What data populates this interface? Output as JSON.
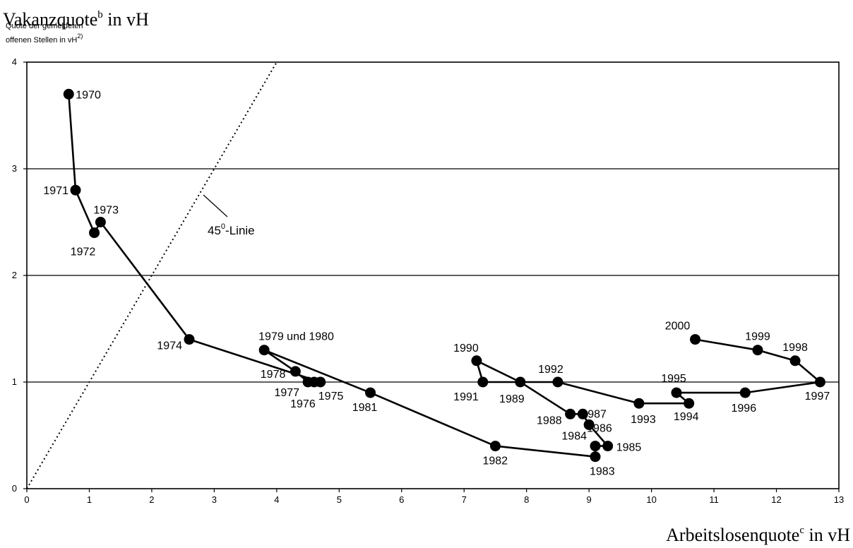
{
  "chart_data": {
    "type": "scatter",
    "title": "",
    "ylabel_main": "Vakanzquote",
    "ylabel_main_sup": "b",
    "ylabel_main_suffix": " in vH",
    "ylabel_sub_line1": "Quote der gemeldeten",
    "ylabel_sub_line2": "offenen Stellen in vH",
    "ylabel_sub_sup": "2)",
    "xlabel_main": "Arbeitslosenquote",
    "xlabel_main_sup": "c",
    "xlabel_main_suffix": " in vH",
    "xlim": [
      0,
      13
    ],
    "ylim": [
      0,
      4
    ],
    "xticks": [
      "0",
      "1",
      "2",
      "3",
      "4",
      "5",
      "6",
      "7",
      "8",
      "9",
      "10",
      "11",
      "12",
      "13"
    ],
    "yticks": [
      "0",
      "1",
      "2",
      "3",
      "4"
    ],
    "grid": "horizontal",
    "reference_line": {
      "label_prefix": "45",
      "label_sup": "0",
      "label_suffix": "-Linie",
      "from": [
        0,
        0
      ],
      "to": [
        4,
        4
      ]
    },
    "series": [
      {
        "points": [
          {
            "x": 0.67,
            "y": 3.7,
            "label": "1970"
          },
          {
            "x": 0.78,
            "y": 2.8,
            "label": "1971"
          },
          {
            "x": 1.08,
            "y": 2.4,
            "label": "1972"
          },
          {
            "x": 1.18,
            "y": 2.5,
            "label": "1973"
          },
          {
            "x": 2.6,
            "y": 1.4,
            "label": "1974"
          },
          {
            "x": 4.7,
            "y": 1.0,
            "label": "1975"
          },
          {
            "x": 4.6,
            "y": 1.0,
            "label": "1976"
          },
          {
            "x": 4.5,
            "y": 1.0,
            "label": "1977"
          },
          {
            "x": 4.3,
            "y": 1.1,
            "label": "1978"
          },
          {
            "x": 3.8,
            "y": 1.3,
            "label": "1979 und 1980"
          },
          {
            "x": 5.5,
            "y": 0.9,
            "label": "1981"
          },
          {
            "x": 7.5,
            "y": 0.4,
            "label": "1982"
          },
          {
            "x": 9.1,
            "y": 0.3,
            "label": "1983"
          },
          {
            "x": 9.1,
            "y": 0.4,
            "label": "1984"
          },
          {
            "x": 9.3,
            "y": 0.4,
            "label": "1985"
          },
          {
            "x": 9.0,
            "y": 0.6,
            "label": "1986"
          },
          {
            "x": 8.9,
            "y": 0.7,
            "label": "1987"
          },
          {
            "x": 8.7,
            "y": 0.7,
            "label": "1988"
          },
          {
            "x": 7.9,
            "y": 1.0,
            "label": "1989"
          },
          {
            "x": 7.2,
            "y": 1.2,
            "label": "1990"
          },
          {
            "x": 7.3,
            "y": 1.0,
            "label": "1991"
          },
          {
            "x": 8.5,
            "y": 1.0,
            "label": "1992"
          },
          {
            "x": 9.8,
            "y": 0.8,
            "label": "1993"
          },
          {
            "x": 10.6,
            "y": 0.8,
            "label": "1994"
          },
          {
            "x": 10.4,
            "y": 0.9,
            "label": "1995"
          },
          {
            "x": 11.5,
            "y": 0.9,
            "label": "1996"
          },
          {
            "x": 12.7,
            "y": 1.0,
            "label": "1997"
          },
          {
            "x": 12.3,
            "y": 1.2,
            "label": "1998"
          },
          {
            "x": 11.7,
            "y": 1.3,
            "label": "1999"
          },
          {
            "x": 10.7,
            "y": 1.4,
            "label": "2000"
          }
        ]
      }
    ]
  }
}
